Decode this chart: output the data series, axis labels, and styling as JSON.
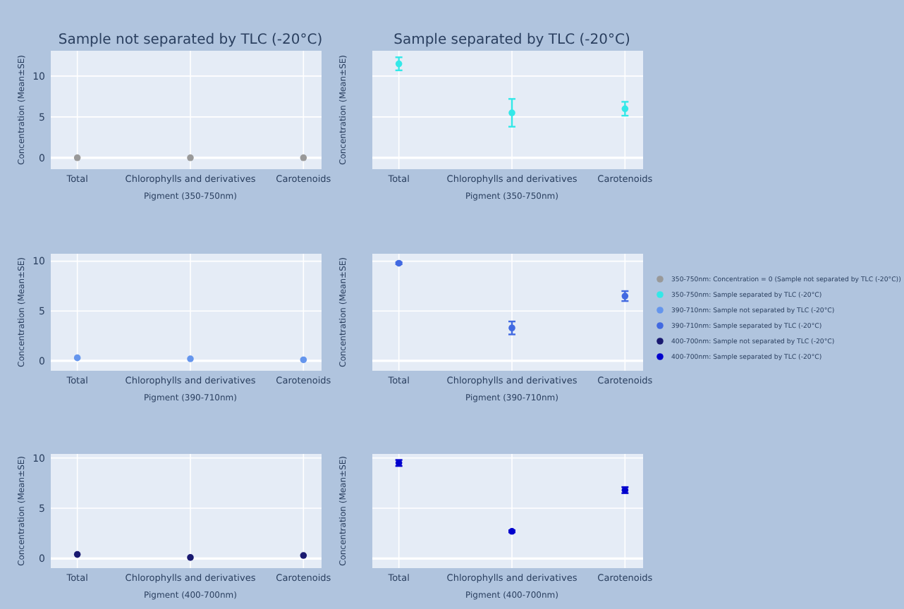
{
  "chart_data": [
    {
      "type": "scatter",
      "title": "Sample not separated by TLC (-20°C)",
      "xlabel": "Pigment (350-750nm)",
      "ylabel": "Concentration (Mean±SE)",
      "categories": [
        "Total",
        "Chlorophylls and derivatives",
        "Carotenoids"
      ],
      "ylim": [
        -1.4,
        13.1
      ],
      "yticks": [
        0,
        5,
        10
      ],
      "grid": true,
      "marker": "circle",
      "legend": "right",
      "series": [
        {
          "name": "350-750nm: Concentration = 0 (Sample not separated by TLC (-20°C))",
          "color": "#999999",
          "values": [
            0,
            0,
            0
          ]
        }
      ]
    },
    {
      "type": "scatter",
      "title": "Sample separated by TLC (-20°C)",
      "xlabel": "Pigment (350-750nm)",
      "ylabel": "Concentration (Mean±SE)",
      "categories": [
        "Total",
        "Chlorophylls and derivatives",
        "Carotenoids"
      ],
      "ylim": [
        -1.4,
        13.1
      ],
      "yticks": [
        0,
        5,
        10
      ],
      "grid": true,
      "marker": "circle",
      "legend": "right",
      "tick_labels": "x",
      "series": [
        {
          "name": "350-750nm: Sample separated by TLC (-20°C)",
          "color": "#33e8e8",
          "values": [
            11.5,
            5.5,
            6.0
          ],
          "errors": [
            0.8,
            1.7,
            0.85
          ]
        }
      ]
    },
    {
      "type": "scatter",
      "xlabel": "Pigment (390-710nm)",
      "ylabel": "Concentration (Mean±SE)",
      "categories": [
        "Total",
        "Chlorophylls and derivatives",
        "Carotenoids"
      ],
      "ylim": [
        -1,
        10.75
      ],
      "yticks": [
        0,
        5,
        10
      ],
      "grid": true,
      "marker": "circle",
      "legend": "right",
      "series": [
        {
          "name": "390-710nm: Sample not separated by TLC (-20°C)",
          "color": "#6495ed",
          "values": [
            0.3,
            0.2,
            0.1
          ]
        }
      ]
    },
    {
      "type": "scatter",
      "xlabel": "Pigment (390-710nm)",
      "ylabel": "Concentration (Mean±SE)",
      "categories": [
        "Total",
        "Chlorophylls and derivatives",
        "Carotenoids"
      ],
      "ylim": [
        -1,
        10.75
      ],
      "yticks": [
        0,
        5,
        10
      ],
      "grid": true,
      "marker": "circle",
      "legend": "right",
      "tick_labels": "x",
      "series": [
        {
          "name": "390-710nm: Sample separated by TLC (-20°C)",
          "color": "#4169e1",
          "values": [
            9.8,
            3.3,
            6.5
          ],
          "errors": [
            0.1,
            0.65,
            0.5
          ]
        }
      ]
    },
    {
      "type": "scatter",
      "xlabel": "Pigment (400-700nm)",
      "ylabel": "Concentration (Mean±SE)",
      "categories": [
        "Total",
        "Chlorophylls and derivatives",
        "Carotenoids"
      ],
      "ylim": [
        -0.96,
        10.4
      ],
      "yticks": [
        0,
        5,
        10
      ],
      "grid": true,
      "marker": "circle",
      "legend": "right",
      "series": [
        {
          "name": "400-700nm: Sample not separated by TLC (-20°C)",
          "color": "#191970",
          "values": [
            0.4,
            0.1,
            0.3
          ]
        }
      ]
    },
    {
      "type": "scatter",
      "xlabel": "Pigment (400-700nm)",
      "ylabel": "Concentration (Mean±SE)",
      "categories": [
        "Total",
        "Chlorophylls and derivatives",
        "Carotenoids"
      ],
      "ylim": [
        -0.96,
        10.4
      ],
      "yticks": [
        0,
        5,
        10
      ],
      "grid": true,
      "marker": "circle",
      "legend": "right",
      "tick_labels": "x",
      "series": [
        {
          "name": "400-700nm: Sample separated by TLC (-20°C)",
          "color": "#0000cd",
          "values": [
            9.5,
            2.7,
            6.8
          ],
          "errors": [
            0.3,
            0.1,
            0.3
          ]
        }
      ]
    }
  ]
}
